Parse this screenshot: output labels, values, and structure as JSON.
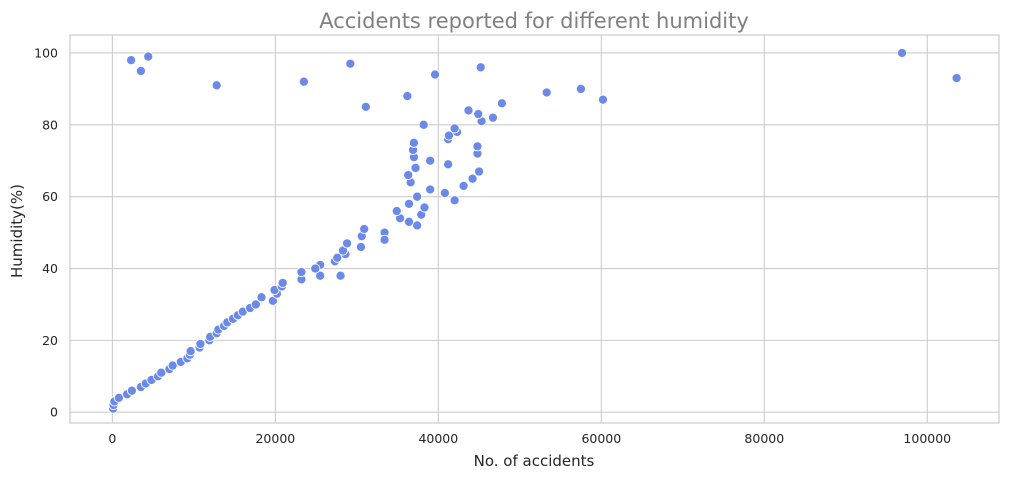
{
  "chart_data": {
    "type": "scatter",
    "title": "Accidents reported for different humidity",
    "xlabel": "No. of accidents",
    "ylabel": "Humidity(%)",
    "xlim": [
      -5200,
      108800
    ],
    "ylim": [
      -3,
      105
    ],
    "grid": true,
    "xticks": [
      0,
      20000,
      40000,
      60000,
      80000,
      100000
    ],
    "xtick_labels": [
      "0",
      "20000",
      "40000",
      "60000",
      "80000",
      "100000"
    ],
    "yticks": [
      0,
      20,
      40,
      60,
      80,
      100
    ],
    "ytick_labels": [
      "0",
      "20",
      "40",
      "60",
      "80",
      "100"
    ],
    "marker_color": "#6a89e8",
    "points": [
      [
        100,
        1
      ],
      [
        150,
        2
      ],
      [
        250,
        3
      ],
      [
        800,
        4
      ],
      [
        1800,
        5
      ],
      [
        2400,
        6
      ],
      [
        3500,
        7
      ],
      [
        4100,
        8
      ],
      [
        4800,
        9
      ],
      [
        5600,
        10
      ],
      [
        6000,
        11
      ],
      [
        7000,
        12
      ],
      [
        7400,
        13
      ],
      [
        8400,
        14
      ],
      [
        9200,
        15
      ],
      [
        9500,
        16
      ],
      [
        9600,
        17
      ],
      [
        10700,
        18
      ],
      [
        10800,
        19
      ],
      [
        11900,
        20
      ],
      [
        12000,
        21
      ],
      [
        12800,
        22
      ],
      [
        13000,
        23
      ],
      [
        13700,
        24
      ],
      [
        14100,
        25
      ],
      [
        14800,
        26
      ],
      [
        15400,
        27
      ],
      [
        16000,
        28
      ],
      [
        16900,
        29
      ],
      [
        17600,
        30
      ],
      [
        19700,
        31
      ],
      [
        18300,
        32
      ],
      [
        20200,
        33
      ],
      [
        19900,
        34
      ],
      [
        20800,
        35
      ],
      [
        20900,
        36
      ],
      [
        23200,
        37
      ],
      [
        28000,
        38
      ],
      [
        23200,
        39
      ],
      [
        24900,
        40
      ],
      [
        25500,
        41
      ],
      [
        27300,
        42
      ],
      [
        27600,
        43
      ],
      [
        28600,
        44
      ],
      [
        28300,
        45
      ],
      [
        30500,
        46
      ],
      [
        28800,
        47
      ],
      [
        33500,
        48
      ],
      [
        30600,
        49
      ],
      [
        33400,
        50
      ],
      [
        30900,
        51
      ],
      [
        37400,
        52
      ],
      [
        36400,
        53
      ],
      [
        35300,
        54
      ],
      [
        37900,
        55
      ],
      [
        34900,
        56
      ],
      [
        38300,
        57
      ],
      [
        36400,
        58
      ],
      [
        42000,
        59
      ],
      [
        37400,
        60
      ],
      [
        40800,
        61
      ],
      [
        39000,
        62
      ],
      [
        43100,
        63
      ],
      [
        36600,
        64
      ],
      [
        44200,
        65
      ],
      [
        36300,
        66
      ],
      [
        45000,
        67
      ],
      [
        37200,
        68
      ],
      [
        41200,
        69
      ],
      [
        39000,
        70
      ],
      [
        37000,
        71
      ],
      [
        44800,
        72
      ],
      [
        36900,
        73
      ],
      [
        44800,
        74
      ],
      [
        37000,
        75
      ],
      [
        41200,
        76
      ],
      [
        41300,
        77
      ],
      [
        42300,
        78
      ],
      [
        42000,
        79
      ],
      [
        38200,
        80
      ],
      [
        45300,
        81
      ],
      [
        46700,
        82
      ],
      [
        44900,
        83
      ],
      [
        43700,
        84
      ],
      [
        31100,
        85
      ],
      [
        47800,
        86
      ],
      [
        60200,
        87
      ],
      [
        36200,
        88
      ],
      [
        53300,
        89
      ],
      [
        57500,
        90
      ],
      [
        12800,
        91
      ],
      [
        23500,
        92
      ],
      [
        103600,
        93
      ],
      [
        39600,
        94
      ],
      [
        3500,
        95
      ],
      [
        45200,
        96
      ],
      [
        29200,
        97
      ],
      [
        2300,
        98
      ],
      [
        4400,
        99
      ],
      [
        96900,
        100
      ],
      [
        25500,
        38
      ],
      [
        33400,
        48
      ],
      [
        24900,
        40
      ]
    ]
  }
}
